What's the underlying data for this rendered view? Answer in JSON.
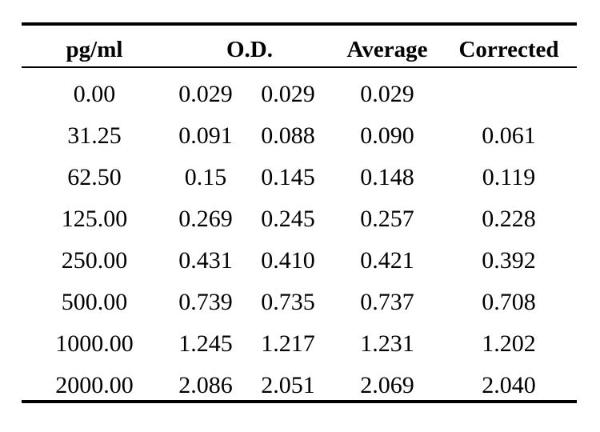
{
  "table": {
    "headers": {
      "conc": "pg/ml",
      "od": "O.D.",
      "average": "Average",
      "corrected": "Corrected"
    },
    "rows": [
      {
        "conc": "0.00",
        "od1": "0.029",
        "od2": "0.029",
        "average": "0.029",
        "corrected": ""
      },
      {
        "conc": "31.25",
        "od1": "0.091",
        "od2": "0.088",
        "average": "0.090",
        "corrected": "0.061"
      },
      {
        "conc": "62.50",
        "od1": "0.15",
        "od2": "0.145",
        "average": "0.148",
        "corrected": "0.119"
      },
      {
        "conc": "125.00",
        "od1": "0.269",
        "od2": "0.245",
        "average": "0.257",
        "corrected": "0.228"
      },
      {
        "conc": "250.00",
        "od1": "0.431",
        "od2": "0.410",
        "average": "0.421",
        "corrected": "0.392"
      },
      {
        "conc": "500.00",
        "od1": "0.739",
        "od2": "0.735",
        "average": "0.737",
        "corrected": "0.708"
      },
      {
        "conc": "1000.00",
        "od1": "1.245",
        "od2": "1.217",
        "average": "1.231",
        "corrected": "1.202"
      },
      {
        "conc": "2000.00",
        "od1": "2.086",
        "od2": "2.051",
        "average": "2.069",
        "corrected": "2.040"
      }
    ]
  }
}
